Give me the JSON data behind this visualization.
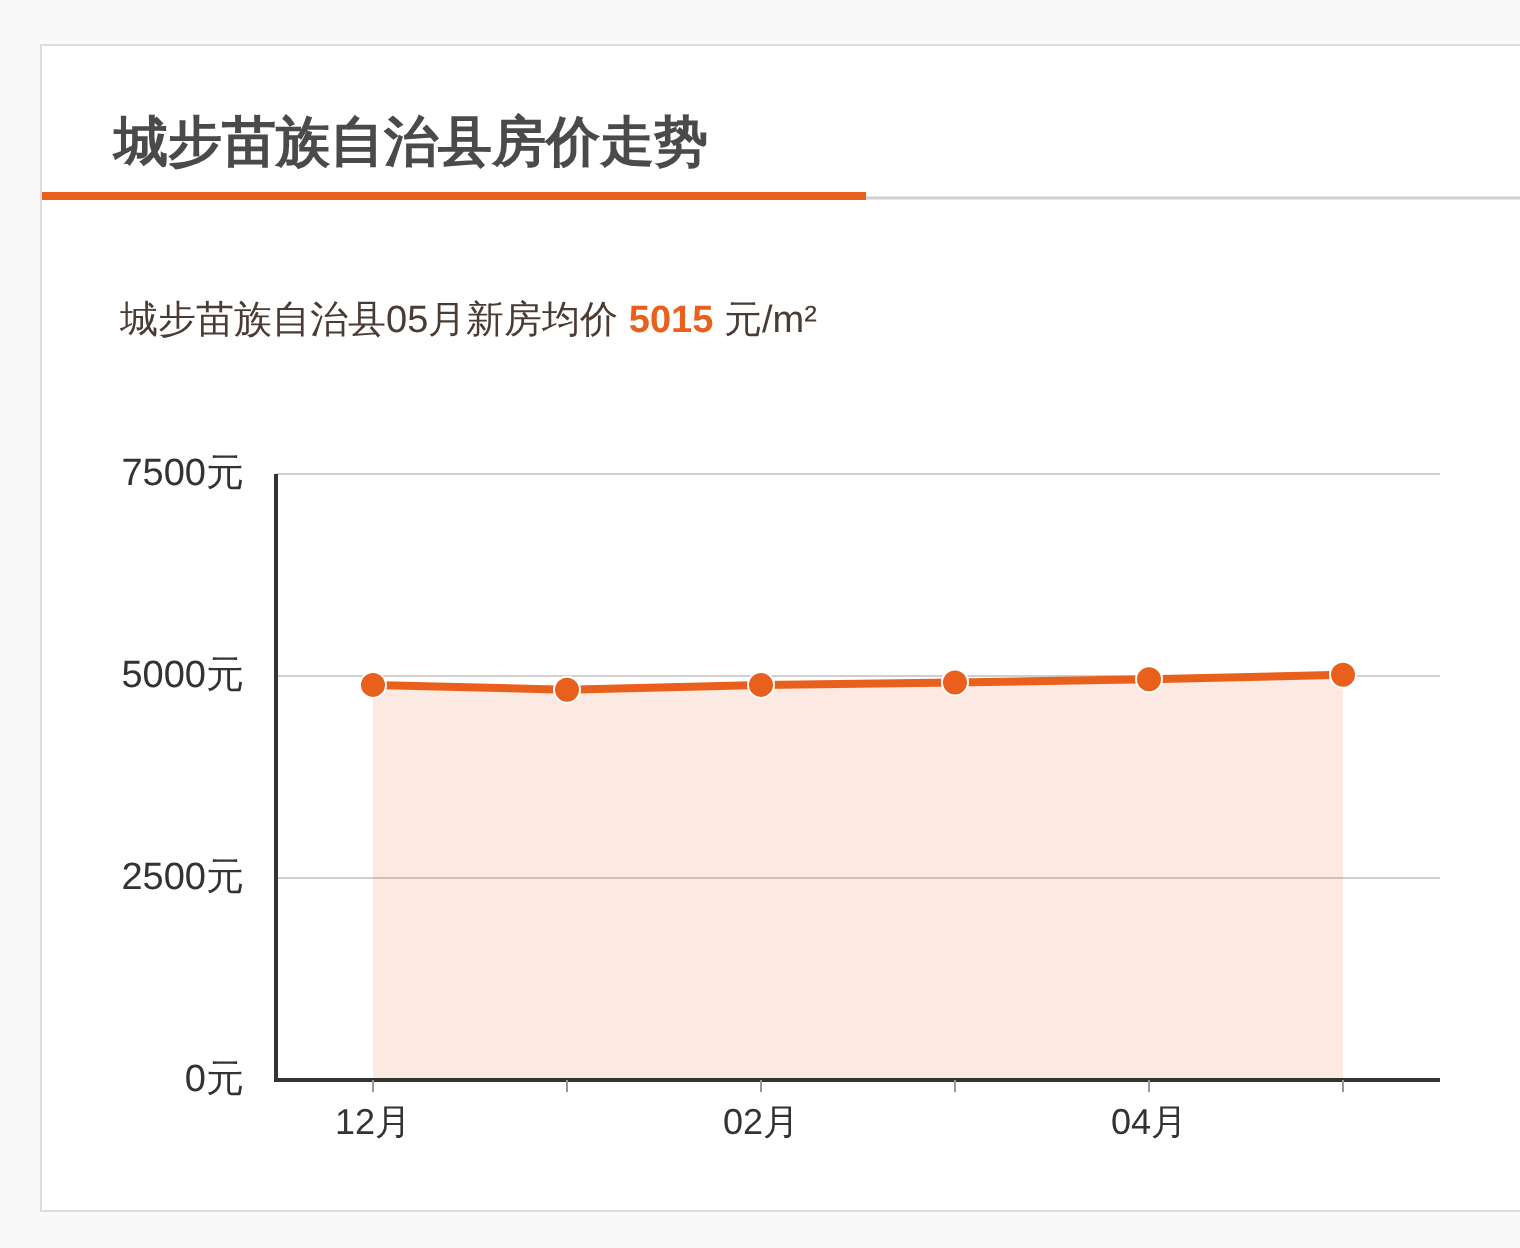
{
  "chart_data": {
    "type": "area",
    "title": "城步苗族自治县房价走势",
    "subtitle": "城步苗族自治县05月新房均价 5015 元/m²",
    "categories": [
      "12月",
      null,
      "02月",
      null,
      "04月",
      null
    ],
    "series": [
      {
        "color": "#e8601c",
        "values": [
          4890,
          4830,
          4890,
          4920,
          4960,
          5015
        ]
      }
    ],
    "ylim": [
      0,
      7500
    ],
    "yticks": [
      {
        "value": 0,
        "label": "0元"
      },
      {
        "value": 2500,
        "label": "2500元"
      },
      {
        "value": 5000,
        "label": "5000元"
      },
      {
        "value": 7500,
        "label": "7500元"
      }
    ],
    "grid": "y",
    "marker": "circle"
  }
}
